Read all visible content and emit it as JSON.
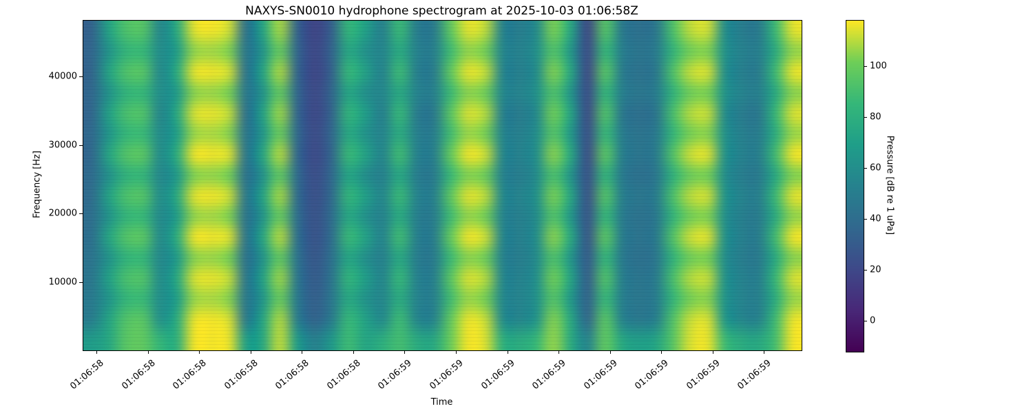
{
  "chart_data": {
    "type": "heatmap",
    "title": "NAXYS-SN0010 hydrophone spectrogram at 2025-10-03 01:06:58Z",
    "xlabel": "Time",
    "ylabel": "Frequency [Hz]",
    "x_tick_labels": [
      "01:06:58",
      "01:06:58",
      "01:06:58",
      "01:06:58",
      "01:06:58",
      "01:06:58",
      "01:06:59",
      "01:06:59",
      "01:06:59",
      "01:06:59",
      "01:06:59",
      "01:06:59",
      "01:06:59",
      "01:06:59"
    ],
    "y_ticks": [
      10000,
      20000,
      30000,
      40000
    ],
    "ylim": [
      0,
      48000
    ],
    "clim": [
      -12,
      118
    ],
    "colorbar": {
      "label": "Pressure [dB re 1 uPa]",
      "ticks": [
        0,
        20,
        40,
        60,
        80,
        100
      ]
    },
    "colormap": {
      "name": "viridis",
      "stops": [
        "#440154",
        "#482878",
        "#3e4989",
        "#31688e",
        "#26828e",
        "#1f9e89",
        "#35b779",
        "#6ece58",
        "#fde725"
      ]
    },
    "grid_note": "Pressure [dB re 1 uPa]; 16 frequency rows (48 kHz top to 0 Hz bottom) x 42 time columns (left to right)",
    "grid": [
      [
        34,
        73,
        93,
        95,
        56,
        78,
        115,
        117,
        113,
        42,
        73,
        108,
        34,
        18,
        32,
        85,
        71,
        52,
        87,
        50,
        48,
        98,
        115,
        111,
        53,
        50,
        58,
        103,
        75,
        20,
        95,
        48,
        42,
        46,
        93,
        111,
        113,
        60,
        50,
        48,
        88,
        115
      ],
      [
        36,
        63,
        83,
        85,
        59,
        68,
        105,
        107,
        103,
        45,
        63,
        98,
        36,
        20,
        34,
        75,
        61,
        55,
        77,
        53,
        51,
        88,
        105,
        101,
        56,
        53,
        61,
        93,
        65,
        22,
        85,
        51,
        45,
        49,
        83,
        101,
        103,
        63,
        53,
        51,
        78,
        105
      ],
      [
        35,
        74,
        94,
        96,
        57,
        79,
        116,
        117,
        114,
        43,
        74,
        109,
        35,
        19,
        33,
        86,
        72,
        53,
        88,
        51,
        49,
        99,
        116,
        112,
        54,
        51,
        59,
        104,
        76,
        21,
        96,
        49,
        43,
        47,
        94,
        112,
        114,
        61,
        51,
        49,
        89,
        116
      ],
      [
        37,
        62,
        82,
        84,
        60,
        67,
        104,
        106,
        102,
        46,
        62,
        97,
        37,
        21,
        35,
        74,
        60,
        56,
        76,
        54,
        52,
        87,
        104,
        100,
        57,
        54,
        62,
        92,
        64,
        23,
        84,
        52,
        46,
        50,
        82,
        100,
        102,
        64,
        54,
        52,
        77,
        104
      ],
      [
        36,
        72,
        92,
        94,
        55,
        77,
        114,
        116,
        112,
        41,
        72,
        107,
        36,
        20,
        34,
        84,
        70,
        51,
        86,
        49,
        47,
        97,
        114,
        110,
        52,
        49,
        57,
        102,
        74,
        22,
        94,
        47,
        41,
        45,
        92,
        110,
        112,
        59,
        49,
        47,
        87,
        114
      ],
      [
        38,
        64,
        84,
        86,
        58,
        69,
        106,
        108,
        104,
        44,
        64,
        99,
        38,
        22,
        36,
        76,
        62,
        54,
        78,
        52,
        50,
        89,
        106,
        102,
        55,
        52,
        60,
        94,
        66,
        24,
        86,
        50,
        44,
        48,
        84,
        102,
        104,
        62,
        52,
        50,
        79,
        106
      ],
      [
        37,
        75,
        95,
        97,
        59,
        80,
        117,
        117,
        115,
        45,
        75,
        110,
        37,
        21,
        35,
        87,
        73,
        55,
        89,
        53,
        51,
        100,
        117,
        113,
        56,
        53,
        61,
        105,
        77,
        23,
        97,
        51,
        45,
        49,
        95,
        113,
        115,
        63,
        53,
        51,
        90,
        117
      ],
      [
        39,
        61,
        81,
        83,
        56,
        66,
        103,
        105,
        101,
        42,
        61,
        96,
        39,
        23,
        37,
        73,
        59,
        52,
        75,
        50,
        48,
        86,
        103,
        99,
        53,
        50,
        58,
        91,
        63,
        25,
        83,
        48,
        42,
        46,
        81,
        99,
        101,
        60,
        50,
        48,
        76,
        103
      ],
      [
        40,
        73,
        93,
        95,
        60,
        78,
        115,
        117,
        113,
        46,
        73,
        108,
        40,
        24,
        38,
        85,
        71,
        56,
        87,
        54,
        52,
        98,
        115,
        111,
        57,
        54,
        62,
        103,
        75,
        26,
        95,
        52,
        46,
        50,
        93,
        111,
        113,
        64,
        54,
        52,
        88,
        115
      ],
      [
        41,
        63,
        83,
        85,
        57,
        68,
        105,
        107,
        103,
        43,
        63,
        98,
        41,
        25,
        39,
        75,
        61,
        53,
        77,
        51,
        49,
        88,
        105,
        101,
        54,
        51,
        59,
        93,
        65,
        27,
        85,
        49,
        43,
        47,
        83,
        101,
        103,
        61,
        51,
        49,
        78,
        105
      ],
      [
        42,
        75,
        95,
        97,
        58,
        80,
        117,
        117,
        115,
        44,
        75,
        110,
        42,
        26,
        40,
        87,
        73,
        54,
        89,
        52,
        50,
        100,
        117,
        113,
        55,
        52,
        60,
        105,
        77,
        28,
        97,
        50,
        44,
        48,
        95,
        113,
        115,
        62,
        52,
        50,
        90,
        117
      ],
      [
        44,
        62,
        82,
        84,
        56,
        67,
        104,
        106,
        102,
        42,
        62,
        97,
        44,
        28,
        42,
        74,
        60,
        52,
        76,
        50,
        48,
        87,
        104,
        100,
        53,
        50,
        58,
        92,
        64,
        30,
        84,
        48,
        42,
        46,
        82,
        100,
        102,
        60,
        50,
        48,
        77,
        104
      ],
      [
        46,
        72,
        92,
        94,
        59,
        77,
        114,
        116,
        112,
        45,
        72,
        107,
        46,
        30,
        44,
        84,
        70,
        55,
        86,
        53,
        51,
        97,
        114,
        110,
        56,
        53,
        61,
        102,
        74,
        32,
        94,
        51,
        45,
        49,
        92,
        110,
        112,
        63,
        53,
        51,
        87,
        114
      ],
      [
        48,
        64,
        84,
        86,
        60,
        69,
        106,
        108,
        104,
        46,
        64,
        99,
        48,
        32,
        46,
        76,
        62,
        56,
        78,
        54,
        52,
        89,
        106,
        102,
        57,
        54,
        62,
        94,
        66,
        34,
        86,
        52,
        46,
        50,
        84,
        102,
        104,
        64,
        54,
        52,
        79,
        106
      ],
      [
        50,
        74,
        94,
        96,
        61,
        79,
        116,
        117,
        114,
        47,
        74,
        109,
        50,
        34,
        48,
        86,
        72,
        57,
        88,
        55,
        53,
        99,
        116,
        112,
        58,
        55,
        63,
        104,
        76,
        36,
        96,
        53,
        47,
        51,
        94,
        112,
        114,
        65,
        55,
        53,
        89,
        116
      ],
      [
        68,
        76,
        96,
        98,
        84,
        81,
        117,
        117,
        116,
        70,
        76,
        111,
        68,
        52,
        66,
        88,
        74,
        80,
        90,
        78,
        76,
        101,
        117,
        114,
        81,
        78,
        86,
        106,
        78,
        54,
        98,
        76,
        70,
        74,
        96,
        114,
        116,
        88,
        78,
        76,
        91,
        117
      ]
    ]
  }
}
